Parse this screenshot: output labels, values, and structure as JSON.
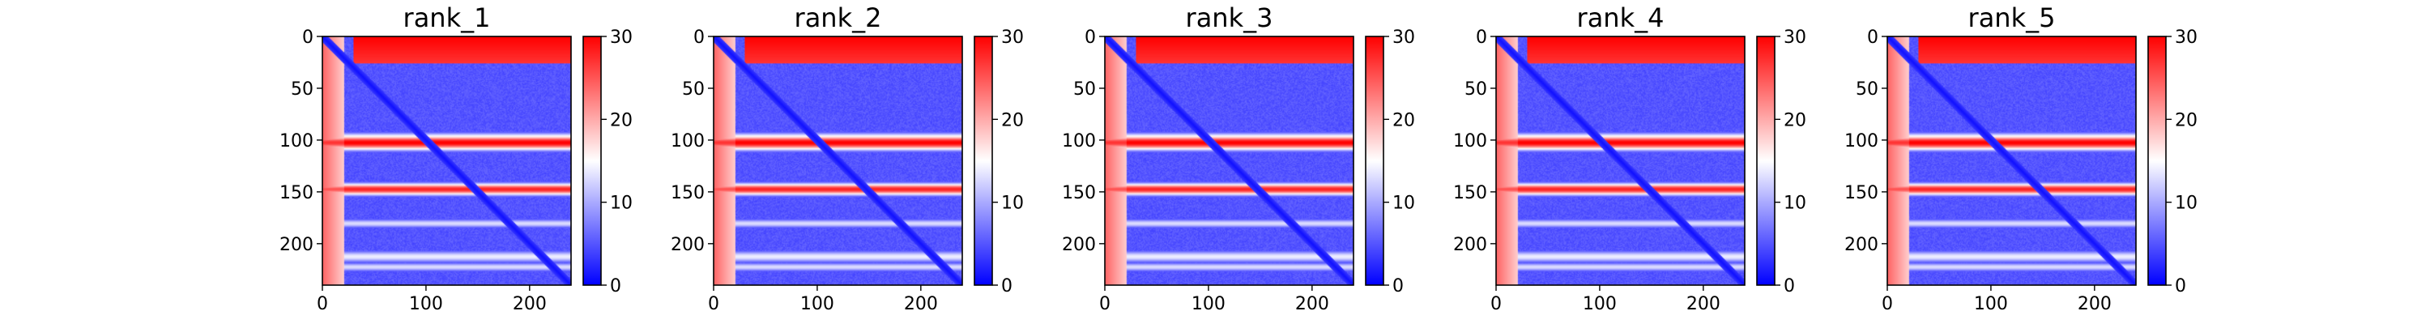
{
  "chart_data": {
    "type": "heatmap",
    "description_of_pattern": "",
    "colormap": {
      "name": "bwr",
      "low": "#0000ff",
      "mid": "#ffffff",
      "high": "#ff0000"
    },
    "vlim": [
      0,
      30
    ],
    "colorbar_ticks": [
      "0",
      "10",
      "20",
      "30"
    ],
    "x_ticks": [
      "0",
      "100",
      "200"
    ],
    "y_ticks": [
      "0",
      "50",
      "100",
      "150",
      "200"
    ],
    "xlim": [
      0,
      240
    ],
    "ylim": [
      240,
      0
    ],
    "matrix_size": 240,
    "features": {
      "background_value": 5,
      "diagonal_band_width": 6,
      "top_red_band": {
        "row_end": 25,
        "col_start": 30,
        "value": 30
      },
      "left_red_column": {
        "col_end": 20,
        "value": 24
      },
      "red_rows": [
        {
          "center": 102,
          "half_width": 5,
          "value": 30
        },
        {
          "center": 147,
          "half_width": 4,
          "value": 28
        }
      ],
      "light_bands": [
        {
          "center": 98,
          "half_width": 4,
          "value": 18
        },
        {
          "center": 180,
          "half_width": 3,
          "value": 13
        },
        {
          "center": 212,
          "half_width": 4,
          "value": 14
        },
        {
          "center": 222,
          "half_width": 3,
          "value": 13
        }
      ]
    },
    "panels": [
      {
        "title": "rank_1"
      },
      {
        "title": "rank_2"
      },
      {
        "title": "rank_3"
      },
      {
        "title": "rank_4"
      },
      {
        "title": "rank_5"
      }
    ]
  }
}
